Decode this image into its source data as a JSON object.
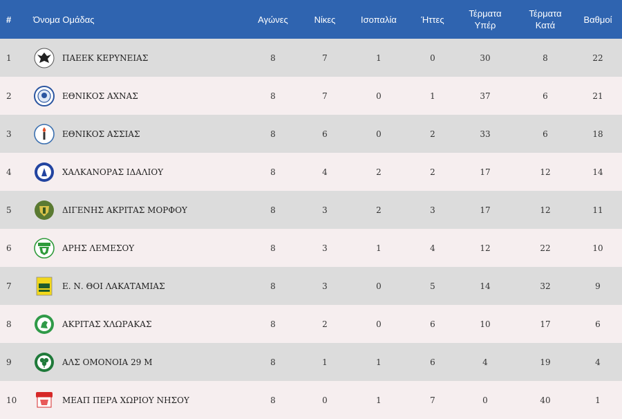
{
  "headers": {
    "position": "#",
    "team": "Όνομα Ομάδας",
    "played": "Αγώνες",
    "wins": "Νίκες",
    "draws": "Ισοπαλία",
    "losses": "Ήττες",
    "goals_for_line1": "Τέρματα",
    "goals_for_line2": "Υπέρ",
    "goals_against_line1": "Τέρματα",
    "goals_against_line2": "Κατά",
    "points": "Βαθμοί"
  },
  "rows": [
    {
      "pos": "1",
      "team": "ΠΑΕΕΚ ΚΕΡΥΝΕΙΑΣ",
      "played": "8",
      "wins": "7",
      "draws": "1",
      "losses": "0",
      "gf": "30",
      "ga": "8",
      "pts": "22",
      "logo": "eagle-crest"
    },
    {
      "pos": "2",
      "team": "ΕΘΝΙΚΟΣ ΑΧΝΑΣ",
      "played": "8",
      "wins": "7",
      "draws": "0",
      "losses": "1",
      "gf": "37",
      "ga": "6",
      "pts": "21",
      "logo": "blue-round-crest"
    },
    {
      "pos": "3",
      "team": "ΕΘΝΙΚΟΣ ΑΣΣΙΑΣ",
      "played": "8",
      "wins": "6",
      "draws": "0",
      "losses": "2",
      "gf": "33",
      "ga": "6",
      "pts": "18",
      "logo": "torch-crest"
    },
    {
      "pos": "4",
      "team": "ΧΑΛΚΑΝΟΡΑΣ ΙΔΑΛΙΟΥ",
      "played": "8",
      "wins": "4",
      "draws": "2",
      "losses": "2",
      "gf": "17",
      "ga": "12",
      "pts": "14",
      "logo": "blue-warrior-crest"
    },
    {
      "pos": "5",
      "team": "ΔΙΓΕΝΗΣ ΑΚΡΙΤΑΣ ΜΟΡΦΟΥ",
      "played": "8",
      "wins": "3",
      "draws": "2",
      "losses": "3",
      "gf": "17",
      "ga": "12",
      "pts": "11",
      "logo": "green-shield-crest"
    },
    {
      "pos": "6",
      "team": "ΑΡΗΣ ΛΕΜΕΣΟΥ",
      "played": "8",
      "wins": "3",
      "draws": "1",
      "losses": "4",
      "gf": "12",
      "ga": "22",
      "pts": "10",
      "logo": "green-white-crest"
    },
    {
      "pos": "7",
      "team": "Ε. Ν. ΘΟΙ ΛΑΚΑΤΑΜΙΑΣ",
      "played": "8",
      "wins": "3",
      "draws": "0",
      "losses": "5",
      "gf": "14",
      "ga": "32",
      "pts": "9",
      "logo": "yellow-square-crest"
    },
    {
      "pos": "8",
      "team": "ΑΚΡΙΤΑΣ ΧΛΩΡΑΚΑΣ",
      "played": "8",
      "wins": "2",
      "draws": "0",
      "losses": "6",
      "gf": "10",
      "ga": "17",
      "pts": "6",
      "logo": "green-horse-crest"
    },
    {
      "pos": "9",
      "team": "ΑΛΣ ΟΜΟΝΟΙΑ 29 Μ",
      "played": "8",
      "wins": "1",
      "draws": "1",
      "losses": "6",
      "gf": "4",
      "ga": "19",
      "pts": "4",
      "logo": "shamrock-crest"
    },
    {
      "pos": "10",
      "team": "ΜΕΑΠ ΠΕΡΑ ΧΩΡΙΟΥ ΝΗΣΟΥ",
      "played": "8",
      "wins": "0",
      "draws": "1",
      "losses": "7",
      "gf": "0",
      "ga": "40",
      "pts": "1",
      "logo": "red-meap-crest"
    }
  ],
  "colors": {
    "header_bg": "#2f64b0",
    "row_odd": "#dcdcdc",
    "row_even": "#f6eeef"
  }
}
